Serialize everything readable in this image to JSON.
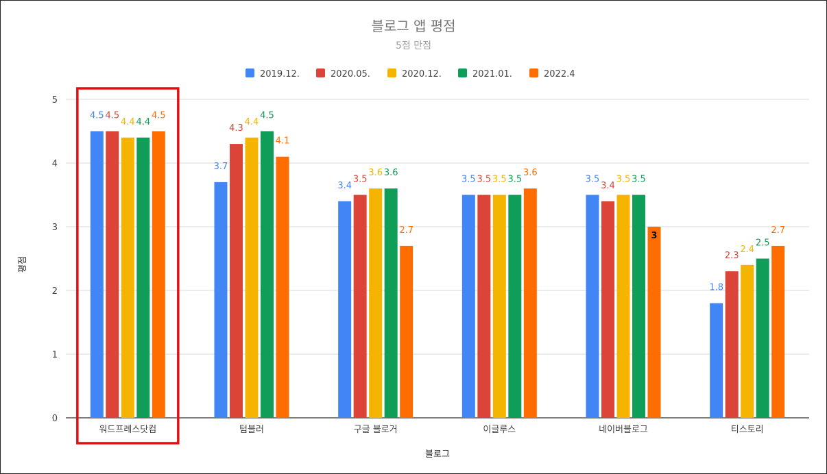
{
  "chart_data": {
    "type": "bar",
    "title": "블로그 앱 평점",
    "subtitle": "5점 만점",
    "xlabel": "블로그",
    "ylabel": "평점",
    "ylim": [
      0,
      5
    ],
    "yticks": [
      0,
      1,
      2,
      3,
      4,
      5
    ],
    "grid": true,
    "legend_position": "top",
    "categories": [
      "워드프레스닷컴",
      "텀블러",
      "구글 블로거",
      "이글루스",
      "네이버블로그",
      "티스토리"
    ],
    "series": [
      {
        "name": "2019.12.",
        "color": "#4285f4",
        "values": [
          4.5,
          3.7,
          3.4,
          3.5,
          3.5,
          1.8
        ]
      },
      {
        "name": "2020.05.",
        "color": "#db4437",
        "values": [
          4.5,
          4.3,
          3.5,
          3.5,
          3.4,
          2.3
        ]
      },
      {
        "name": "2020.12.",
        "color": "#f4b400",
        "values": [
          4.4,
          4.4,
          3.6,
          3.5,
          3.5,
          2.4
        ]
      },
      {
        "name": "2021.01.",
        "color": "#0f9d58",
        "values": [
          4.4,
          4.5,
          3.6,
          3.5,
          3.5,
          2.5
        ]
      },
      {
        "name": "2022.4",
        "color": "#ff6d01",
        "values": [
          4.5,
          4.1,
          2.7,
          3.6,
          3,
          2.7
        ]
      }
    ],
    "highlight": {
      "category": "워드프레스닷컴",
      "color": "#e01010"
    }
  }
}
